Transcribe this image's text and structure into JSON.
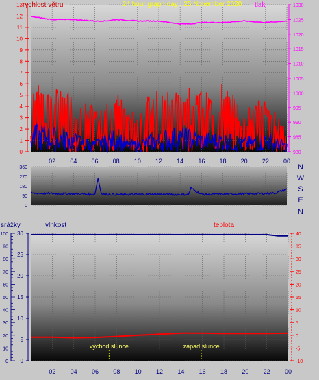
{
  "header": {
    "left_label": "rychlost větru",
    "title": "24 hour graph day : 25 November 2020",
    "right_label": "tlak"
  },
  "middle": {
    "compass": [
      "N",
      "W",
      "S",
      "E",
      "N"
    ]
  },
  "bottom_header": {
    "rain_label": "srážky",
    "humidity_label": "vlhkost",
    "temp_label": "teplota"
  },
  "annotations": {
    "sunrise": "východ slunce",
    "sunset": "západ slunce"
  },
  "colors": {
    "gust": "#ff0000",
    "avg_wind": "#0000cc",
    "pressure": "#ff00ff",
    "direction": "#0000aa",
    "humidity": "#000080",
    "temperature": "#ff0000",
    "sun_event": "#cccc00"
  },
  "chart_data": [
    {
      "type": "line",
      "x_ticks": [
        "02",
        "04",
        "06",
        "08",
        "10",
        "12",
        "14",
        "16",
        "18",
        "20",
        "22",
        "00"
      ],
      "y_left_ticks": [
        0,
        1,
        2,
        3,
        4,
        5,
        6,
        7,
        8,
        9,
        10,
        11,
        12,
        13
      ],
      "y_right_ticks": [
        980,
        985,
        990,
        995,
        1000,
        1005,
        1010,
        1015,
        1020,
        1025,
        1030
      ],
      "ylim_left": [
        0,
        13
      ],
      "ylim_right": [
        980,
        1030
      ],
      "series": [
        {
          "role": "pressure",
          "axis": "right",
          "x": [
            0,
            2,
            4,
            6,
            7,
            8,
            10,
            12,
            14,
            15,
            16,
            18,
            20,
            22,
            24
          ],
          "values": [
            1026,
            1025,
            1025,
            1024.5,
            1024.5,
            1025,
            1024.5,
            1024.5,
            1023.5,
            1023.5,
            1024,
            1024,
            1024.5,
            1024,
            1024.5
          ]
        },
        {
          "role": "gust",
          "axis": "left",
          "x": [
            0,
            1,
            2,
            3,
            4,
            5,
            6,
            7,
            8,
            9,
            10,
            11,
            12,
            13,
            14,
            15,
            16,
            17,
            18,
            19,
            20,
            21,
            22,
            23,
            24
          ],
          "values": [
            4,
            5,
            4,
            4,
            3,
            2,
            2,
            3,
            4,
            2,
            2,
            3,
            3,
            4,
            4,
            4,
            3,
            3,
            3,
            3,
            2,
            3,
            3,
            2,
            1
          ],
          "peaks": [
            6,
            5.5,
            5,
            5.5,
            4.5,
            4,
            3.5,
            4.5,
            5,
            3.5,
            3,
            4.5,
            5,
            5.5,
            5,
            5.5,
            5,
            4.5,
            5.5,
            4.5,
            3.5,
            4,
            4.5,
            3,
            2.5
          ]
        },
        {
          "role": "average wind",
          "axis": "left",
          "x": [
            0,
            1,
            2,
            3,
            4,
            5,
            6,
            7,
            8,
            9,
            10,
            11,
            12,
            13,
            14,
            15,
            16,
            17,
            18,
            19,
            20,
            21,
            22,
            23,
            24
          ],
          "values": [
            1,
            1.2,
            1,
            1,
            0.8,
            0.6,
            0.5,
            0.7,
            1,
            0.5,
            0.5,
            0.7,
            0.8,
            1,
            1,
            1,
            0.8,
            0.8,
            0.8,
            0.7,
            0.6,
            0.7,
            0.8,
            0.6,
            0.4
          ]
        }
      ]
    },
    {
      "type": "line",
      "x_ticks": [
        "02",
        "04",
        "06",
        "08",
        "10",
        "12",
        "14",
        "16",
        "18",
        "20",
        "22",
        "00"
      ],
      "y_ticks": [
        0,
        90,
        180,
        270,
        360
      ],
      "ylim": [
        0,
        360
      ],
      "series": [
        {
          "role": "wind direction",
          "x": [
            0,
            2,
            4,
            6,
            6.3,
            6.6,
            7,
            8,
            10,
            12,
            14,
            14.8,
            15,
            16,
            18,
            20,
            22,
            23,
            24
          ],
          "values": [
            112,
            108,
            105,
            100,
            250,
            110,
            102,
            98,
            100,
            102,
            98,
            100,
            160,
            100,
            102,
            105,
            108,
            115,
            150
          ]
        }
      ]
    },
    {
      "type": "line",
      "x_ticks": [
        "02",
        "04",
        "06",
        "08",
        "10",
        "12",
        "14",
        "16",
        "18",
        "20",
        "22",
        "00"
      ],
      "y_left_ticks": [
        0,
        5,
        10,
        15,
        20,
        25,
        30
      ],
      "y_left_secondary_ticks": [
        0,
        10,
        20,
        30,
        40,
        50,
        60,
        70,
        80,
        90,
        100
      ],
      "y_right_ticks": [
        -10,
        -5,
        0,
        5,
        10,
        15,
        20,
        25,
        30,
        35,
        40
      ],
      "ylim_left": [
        0,
        100
      ],
      "ylim_right": [
        -10,
        40
      ],
      "sunrise_hour": 7.3,
      "sunset_hour": 15.9,
      "series": [
        {
          "role": "humidity",
          "axis": "left",
          "x": [
            0,
            2,
            4,
            6,
            8,
            10,
            12,
            14,
            16,
            18,
            20,
            22,
            23,
            24
          ],
          "values": [
            99,
            99,
            99,
            99,
            99,
            99,
            99,
            99,
            99,
            99,
            99,
            99,
            98,
            98
          ]
        },
        {
          "role": "temperature",
          "axis": "right",
          "x": [
            0,
            2,
            4,
            6,
            8,
            10,
            12,
            14,
            16,
            18,
            20,
            22,
            24
          ],
          "values": [
            -0.8,
            -0.8,
            -1,
            -0.9,
            -0.5,
            0,
            0.4,
            0.8,
            0.8,
            0.7,
            0.7,
            0.7,
            0.8
          ]
        }
      ]
    }
  ]
}
